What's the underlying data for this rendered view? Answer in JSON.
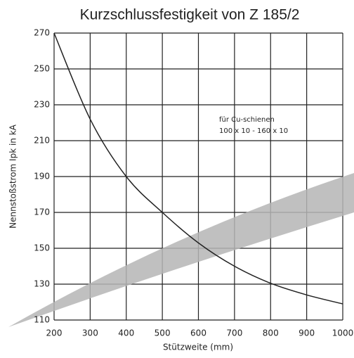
{
  "chart_data": {
    "type": "line",
    "title": "Kurzschlussfestigkeit von Z 185/2",
    "x_label": "Stützweite (mm)",
    "y_label": "Nennstoßstrom Ipk in kA",
    "annotation": [
      "für Cu-schienen",
      "100 x 10 - 160 x 10"
    ],
    "x": [
      200,
      300,
      400,
      500,
      600,
      700,
      800,
      900,
      1000
    ],
    "values": [
      270,
      222,
      190,
      170,
      153,
      140,
      130.5,
      124,
      119
    ],
    "color": "#222222",
    "xlim": [
      200,
      1000
    ],
    "ylim": [
      110,
      270
    ],
    "xticks": [
      200,
      300,
      400,
      500,
      600,
      700,
      800,
      900,
      1000
    ],
    "yticks": [
      110,
      130,
      150,
      170,
      190,
      210,
      230,
      250,
      270
    ],
    "grid": true
  }
}
